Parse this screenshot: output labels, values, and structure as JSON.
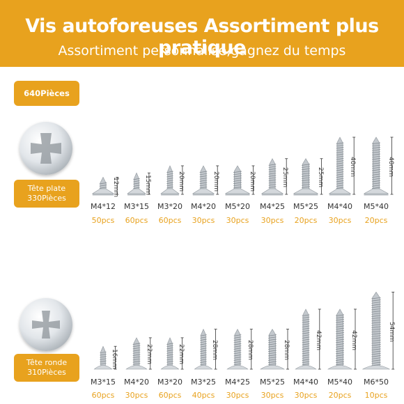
{
  "header": {
    "title": "Vis autoforeuses Assortiment plus pratique",
    "subtitle": "Assortiment personnalisé,gagnez du temps"
  },
  "badges": {
    "total": "640Pièces",
    "flat_line1": "Tête plate",
    "flat_line2": "330Pièces",
    "round_line1": "Tête ronde",
    "round_line2": "310Pièces"
  },
  "colors": {
    "accent": "#e8a21e",
    "text": "#333333",
    "metal": "#b9bec3"
  },
  "flat_head": [
    {
      "size": "M4*12",
      "qty": "50pcs",
      "length": "12mm"
    },
    {
      "size": "M3*15",
      "qty": "60pcs",
      "length": "15mm"
    },
    {
      "size": "M3*20",
      "qty": "60pcs",
      "length": "20mm"
    },
    {
      "size": "M4*20",
      "qty": "30pcs",
      "length": "20mm"
    },
    {
      "size": "M5*20",
      "qty": "30pcs",
      "length": "20mm"
    },
    {
      "size": "M4*25",
      "qty": "30pcs",
      "length": "25mm"
    },
    {
      "size": "M5*25",
      "qty": "20pcs",
      "length": "25mm"
    },
    {
      "size": "M4*40",
      "qty": "30pcs",
      "length": "40mm"
    },
    {
      "size": "M5*40",
      "qty": "20pcs",
      "length": "40mm"
    }
  ],
  "round_head": [
    {
      "size": "M3*15",
      "qty": "60pcs",
      "length": "16mm"
    },
    {
      "size": "M4*20",
      "qty": "30pcs",
      "length": "22mm"
    },
    {
      "size": "M3*20",
      "qty": "60pcs",
      "length": "22mm"
    },
    {
      "size": "M3*25",
      "qty": "40pcs",
      "length": "28mm"
    },
    {
      "size": "M4*25",
      "qty": "30pcs",
      "length": "28mm"
    },
    {
      "size": "M5*25",
      "qty": "30pcs",
      "length": "28mm"
    },
    {
      "size": "M4*40",
      "qty": "30pcs",
      "length": "42mm"
    },
    {
      "size": "M5*40",
      "qty": "20pcs",
      "length": "42mm"
    },
    {
      "size": "M6*50",
      "qty": "10pcs",
      "length": "54mm"
    }
  ]
}
